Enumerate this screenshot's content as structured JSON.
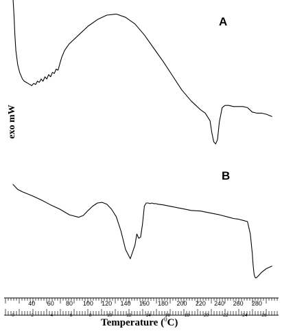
{
  "chart_data": {
    "type": "line",
    "title": "",
    "ylabel": "exo mW",
    "xlabel": "Temperature (°C)",
    "xlabel_parts": {
      "main": "Temperature (",
      "sup": "0",
      "tail": "C)"
    },
    "xlim": [
      20,
      298
    ],
    "grid": false,
    "legend": "none",
    "major_ticks": [
      40,
      60,
      80,
      100,
      120,
      140,
      160,
      180,
      200,
      220,
      240,
      260,
      280
    ],
    "minor_tick_labels": [
      "0",
      "2",
      "4",
      "6",
      "8",
      "10",
      "12",
      "14",
      "16",
      "18",
      "20",
      "22",
      "24",
      "26"
    ],
    "series": [
      {
        "panel": "A",
        "x": [
          20,
          21,
          22,
          23,
          25,
          27,
          30,
          32,
          34,
          36,
          38,
          40,
          42,
          44,
          46,
          48,
          50,
          52,
          54,
          56,
          58,
          60,
          62,
          64,
          66,
          68,
          70,
          72,
          75,
          80,
          90,
          100,
          110,
          120,
          130,
          140,
          150,
          160,
          170,
          180,
          190,
          200,
          210,
          215,
          220,
          225,
          230,
          232,
          234,
          236,
          238,
          240,
          243,
          246,
          250,
          255,
          260,
          265,
          270,
          275,
          280,
          285,
          290,
          296
        ],
        "y": [
          95,
          80,
          62,
          48,
          35,
          28,
          22,
          20,
          19,
          18,
          17,
          16,
          18,
          17,
          20,
          19,
          22,
          20,
          24,
          22,
          26,
          24,
          28,
          27,
          31,
          30,
          36,
          42,
          48,
          54,
          62,
          70,
          76,
          80,
          81,
          78,
          72,
          62,
          50,
          38,
          25,
          12,
          2,
          -2,
          -6,
          -9,
          -16,
          -27,
          -35,
          -37,
          -33,
          -17,
          -4,
          -2,
          -2,
          -3,
          -3,
          -3,
          -4,
          -8,
          -9,
          -9,
          -10,
          -12
        ]
      },
      {
        "panel": "B",
        "x": [
          20,
          25,
          30,
          40,
          50,
          60,
          70,
          80,
          90,
          95,
          100,
          105,
          110,
          115,
          120,
          125,
          130,
          135,
          140,
          145,
          150,
          152,
          154,
          156,
          158,
          160,
          162,
          164,
          166,
          168,
          170,
          172,
          175,
          180,
          190,
          200,
          210,
          220,
          230,
          240,
          250,
          255,
          260,
          265,
          270,
          273,
          275,
          276,
          277,
          278,
          279,
          280,
          282,
          285,
          290,
          296
        ],
        "y": [
          30,
          22,
          18,
          12,
          5,
          -3,
          -10,
          -19,
          -23,
          -20,
          -12,
          -5,
          0,
          1,
          -2,
          -10,
          -22,
          -45,
          -75,
          -90,
          -68,
          -50,
          -57,
          -55,
          -35,
          -5,
          0,
          0,
          -1,
          0,
          -1,
          -1,
          -2,
          -3,
          -6,
          -9,
          -12,
          -13,
          -16,
          -19,
          -23,
          -25,
          -26,
          -28,
          -30,
          -50,
          -80,
          -100,
          -115,
          -120,
          -121,
          -120,
          -117,
          -112,
          -106,
          -102
        ]
      }
    ]
  },
  "panels": {
    "A": {
      "label": "A"
    },
    "B": {
      "label": "B"
    }
  }
}
